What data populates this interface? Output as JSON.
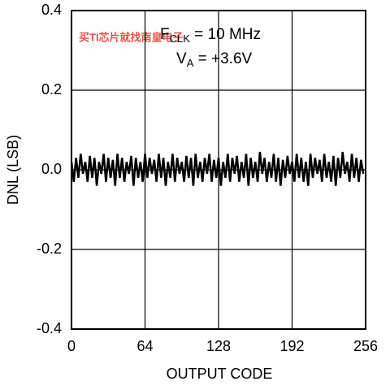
{
  "chart_data": {
    "type": "line",
    "watermark": "买TI芯片就找南皇电子",
    "annotations": [
      {
        "main": "F",
        "sub": "CLK",
        "rest": " = 10 MHz"
      },
      {
        "main": "V",
        "sub": "A",
        "rest": " = +3.6V"
      }
    ],
    "xlabel": "OUTPUT CODE",
    "ylabel": "DNL (LSB)",
    "xlim": [
      0,
      256
    ],
    "xticks": [
      0,
      64,
      128,
      192,
      256
    ],
    "ylim": [
      -0.4,
      0.4
    ],
    "yticks": [
      -0.4,
      -0.2,
      {
        "value": 0,
        "label": "0.0"
      },
      0.2,
      0.4
    ],
    "grid": true,
    "series": [
      {
        "color": "#000000",
        "x": [
          0,
          2,
          4,
          6,
          8,
          10,
          12,
          14,
          16,
          18,
          20,
          22,
          24,
          26,
          28,
          30,
          32,
          34,
          36,
          38,
          40,
          42,
          44,
          46,
          48,
          50,
          52,
          54,
          56,
          58,
          60,
          62,
          64,
          66,
          68,
          70,
          72,
          74,
          76,
          78,
          80,
          82,
          84,
          86,
          88,
          90,
          92,
          94,
          96,
          98,
          100,
          102,
          104,
          106,
          108,
          110,
          112,
          114,
          116,
          118,
          120,
          122,
          124,
          126,
          128,
          130,
          132,
          134,
          136,
          138,
          140,
          142,
          144,
          146,
          148,
          150,
          152,
          154,
          156,
          158,
          160,
          162,
          164,
          166,
          168,
          170,
          172,
          174,
          176,
          178,
          180,
          182,
          184,
          186,
          188,
          190,
          192,
          194,
          196,
          198,
          200,
          202,
          204,
          206,
          208,
          210,
          212,
          214,
          216,
          218,
          220,
          222,
          224,
          226,
          228,
          230,
          232,
          234,
          236,
          238,
          240,
          242,
          244,
          246,
          248,
          250,
          252,
          254
        ],
        "values": [
          0.02,
          -0.03,
          0.03,
          -0.02,
          0.04,
          -0.01,
          0.02,
          -0.03,
          0.035,
          -0.02,
          0.03,
          -0.04,
          0.02,
          -0.01,
          0.04,
          -0.03,
          0.03,
          -0.02,
          0.025,
          -0.04,
          0.04,
          -0.02,
          0.03,
          -0.03,
          0.02,
          -0.01,
          0.035,
          -0.04,
          0.03,
          -0.02,
          0.02,
          -0.03,
          0.04,
          -0.02,
          0.03,
          -0.01,
          0.025,
          -0.03,
          0.04,
          -0.02,
          0.03,
          -0.04,
          0.02,
          -0.02,
          0.04,
          -0.03,
          0.03,
          -0.01,
          0.02,
          -0.03,
          0.035,
          -0.02,
          0.03,
          -0.04,
          0.04,
          -0.02,
          0.02,
          -0.03,
          0.03,
          -0.01,
          0.04,
          -0.03,
          0.025,
          -0.02,
          0.03,
          -0.04,
          0.02,
          -0.02,
          0.04,
          -0.03,
          0.03,
          -0.01,
          0.035,
          -0.03,
          0.02,
          -0.02,
          0.04,
          -0.04,
          0.03,
          -0.02,
          0.02,
          -0.03,
          0.045,
          -0.01,
          0.03,
          -0.03,
          0.02,
          -0.02,
          0.04,
          -0.03,
          0.03,
          -0.04,
          0.025,
          -0.02,
          0.035,
          -0.01,
          0.02,
          -0.03,
          0.04,
          -0.02,
          0.03,
          -0.03,
          0.02,
          -0.04,
          0.04,
          -0.02,
          0.03,
          -0.01,
          0.025,
          -0.03,
          0.04,
          -0.02,
          0.02,
          -0.03,
          0.035,
          -0.04,
          0.03,
          -0.02,
          0.045,
          -0.01,
          0.02,
          -0.03,
          0.04,
          -0.02,
          0.03,
          -0.03,
          0.025,
          -0.01
        ]
      }
    ]
  }
}
